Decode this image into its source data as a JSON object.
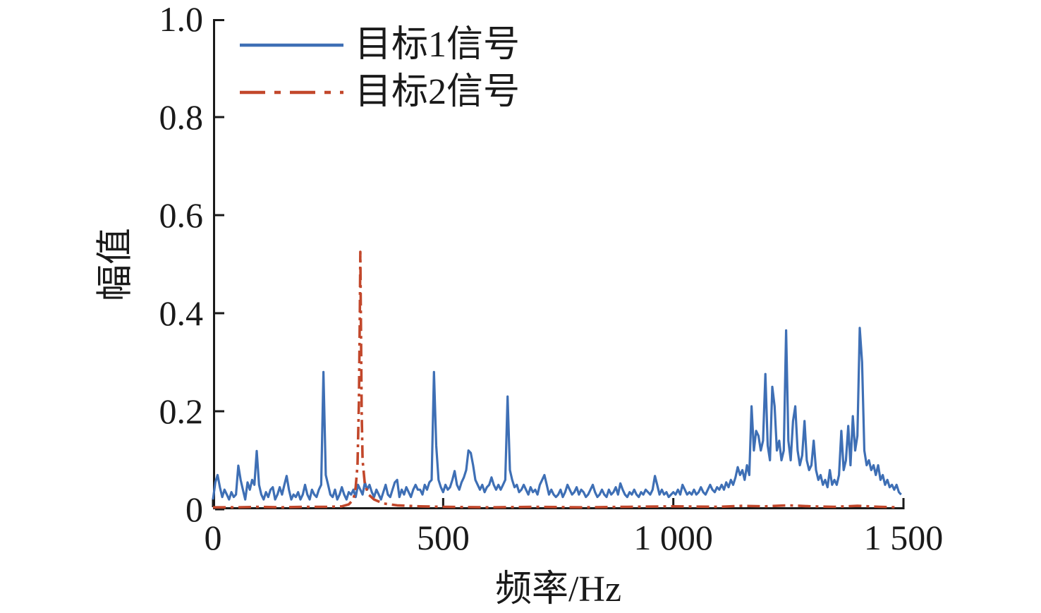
{
  "figure": {
    "background": "#ffffff",
    "text_color": "#1a1a1a",
    "axis_color": "#1a1a1a"
  },
  "chart_data": {
    "type": "line",
    "title": "",
    "xlabel": "频率/Hz",
    "ylabel": "幅值",
    "xlim": [
      0,
      1500
    ],
    "ylim": [
      0,
      1.0
    ],
    "grid": false,
    "legend_position": "top-left-inside",
    "x_ticks": {
      "values": [
        0,
        500,
        1000,
        1500
      ],
      "labels": [
        "0",
        "500",
        "1 000",
        "1 500"
      ]
    },
    "y_ticks": {
      "values": [
        0,
        0.2,
        0.4,
        0.6,
        0.8,
        1.0
      ],
      "labels": [
        "0",
        "0.2",
        "0.4",
        "0.6",
        "0.8",
        "1.0"
      ]
    },
    "series": [
      {
        "name": "目标1信号",
        "color": "#3e6fb5",
        "style": "solid",
        "line_width": 3.2,
        "x_start": 0,
        "x_step": 5,
        "values": [
          0.02,
          0.055,
          0.07,
          0.045,
          0.025,
          0.04,
          0.03,
          0.02,
          0.035,
          0.025,
          0.03,
          0.089,
          0.06,
          0.04,
          0.02,
          0.055,
          0.04,
          0.06,
          0.05,
          0.119,
          0.05,
          0.03,
          0.02,
          0.035,
          0.025,
          0.04,
          0.045,
          0.02,
          0.03,
          0.045,
          0.03,
          0.05,
          0.068,
          0.04,
          0.02,
          0.03,
          0.025,
          0.035,
          0.02,
          0.03,
          0.05,
          0.03,
          0.02,
          0.04,
          0.03,
          0.025,
          0.04,
          0.05,
          0.28,
          0.07,
          0.05,
          0.03,
          0.025,
          0.04,
          0.02,
          0.03,
          0.045,
          0.03,
          0.02,
          0.035,
          0.03,
          0.04,
          0.025,
          0.05,
          0.04,
          0.03,
          0.055,
          0.04,
          0.05,
          0.035,
          0.025,
          0.04,
          0.03,
          0.02,
          0.035,
          0.05,
          0.03,
          0.025,
          0.04,
          0.055,
          0.06,
          0.025,
          0.04,
          0.03,
          0.045,
          0.035,
          0.025,
          0.04,
          0.05,
          0.04,
          0.04,
          0.03,
          0.05,
          0.04,
          0.055,
          0.06,
          0.28,
          0.13,
          0.06,
          0.045,
          0.035,
          0.05,
          0.04,
          0.045,
          0.06,
          0.078,
          0.05,
          0.04,
          0.055,
          0.065,
          0.08,
          0.12,
          0.115,
          0.09,
          0.06,
          0.05,
          0.04,
          0.05,
          0.035,
          0.045,
          0.05,
          0.065,
          0.05,
          0.04,
          0.05,
          0.04,
          0.05,
          0.06,
          0.23,
          0.08,
          0.06,
          0.045,
          0.05,
          0.035,
          0.04,
          0.05,
          0.04,
          0.03,
          0.045,
          0.035,
          0.04,
          0.03,
          0.05,
          0.06,
          0.07,
          0.05,
          0.03,
          0.04,
          0.03,
          0.025,
          0.03,
          0.04,
          0.025,
          0.035,
          0.05,
          0.04,
          0.03,
          0.035,
          0.045,
          0.03,
          0.04,
          0.035,
          0.025,
          0.03,
          0.04,
          0.05,
          0.035,
          0.025,
          0.03,
          0.04,
          0.03,
          0.025,
          0.04,
          0.03,
          0.035,
          0.045,
          0.03,
          0.053,
          0.04,
          0.03,
          0.025,
          0.035,
          0.03,
          0.04,
          0.03,
          0.025,
          0.035,
          0.03,
          0.04,
          0.035,
          0.03,
          0.04,
          0.068,
          0.05,
          0.03,
          0.04,
          0.03,
          0.035,
          0.025,
          0.03,
          0.035,
          0.03,
          0.04,
          0.03,
          0.05,
          0.04,
          0.03,
          0.035,
          0.03,
          0.04,
          0.03,
          0.035,
          0.045,
          0.035,
          0.03,
          0.04,
          0.05,
          0.04,
          0.035,
          0.045,
          0.04,
          0.05,
          0.04,
          0.055,
          0.045,
          0.06,
          0.05,
          0.065,
          0.086,
          0.07,
          0.08,
          0.06,
          0.09,
          0.07,
          0.21,
          0.12,
          0.16,
          0.15,
          0.12,
          0.14,
          0.276,
          0.13,
          0.1,
          0.25,
          0.21,
          0.12,
          0.14,
          0.1,
          0.12,
          0.365,
          0.14,
          0.1,
          0.18,
          0.21,
          0.12,
          0.09,
          0.11,
          0.18,
          0.1,
          0.08,
          0.09,
          0.14,
          0.08,
          0.06,
          0.07,
          0.05,
          0.06,
          0.045,
          0.08,
          0.05,
          0.06,
          0.05,
          0.07,
          0.16,
          0.08,
          0.1,
          0.17,
          0.09,
          0.19,
          0.12,
          0.15,
          0.37,
          0.3,
          0.12,
          0.09,
          0.1,
          0.08,
          0.09,
          0.07,
          0.09,
          0.06,
          0.07,
          0.05,
          0.06,
          0.045,
          0.05,
          0.04,
          0.05,
          0.035,
          0.03
        ]
      },
      {
        "name": "目标2信号",
        "color": "#c2472b",
        "style": "dash-dot",
        "line_width": 3.6,
        "peak": {
          "x": 320,
          "y": 0.525
        },
        "points": [
          [
            0,
            0.004
          ],
          [
            50,
            0.004
          ],
          [
            100,
            0.005
          ],
          [
            150,
            0.004
          ],
          [
            200,
            0.005
          ],
          [
            250,
            0.005
          ],
          [
            280,
            0.006
          ],
          [
            295,
            0.01
          ],
          [
            305,
            0.02
          ],
          [
            310,
            0.045
          ],
          [
            314,
            0.09
          ],
          [
            317,
            0.22
          ],
          [
            319,
            0.4
          ],
          [
            320,
            0.525
          ],
          [
            321,
            0.42
          ],
          [
            323,
            0.2
          ],
          [
            325,
            0.1
          ],
          [
            330,
            0.05
          ],
          [
            338,
            0.03
          ],
          [
            350,
            0.02
          ],
          [
            370,
            0.012
          ],
          [
            400,
            0.008
          ],
          [
            450,
            0.006
          ],
          [
            500,
            0.005
          ],
          [
            600,
            0.004
          ],
          [
            700,
            0.005
          ],
          [
            800,
            0.004
          ],
          [
            900,
            0.005
          ],
          [
            1000,
            0.006
          ],
          [
            1100,
            0.005
          ],
          [
            1150,
            0.007
          ],
          [
            1200,
            0.006
          ],
          [
            1250,
            0.008
          ],
          [
            1300,
            0.006
          ],
          [
            1350,
            0.005
          ],
          [
            1400,
            0.007
          ],
          [
            1450,
            0.005
          ],
          [
            1490,
            0.004
          ]
        ]
      }
    ]
  }
}
